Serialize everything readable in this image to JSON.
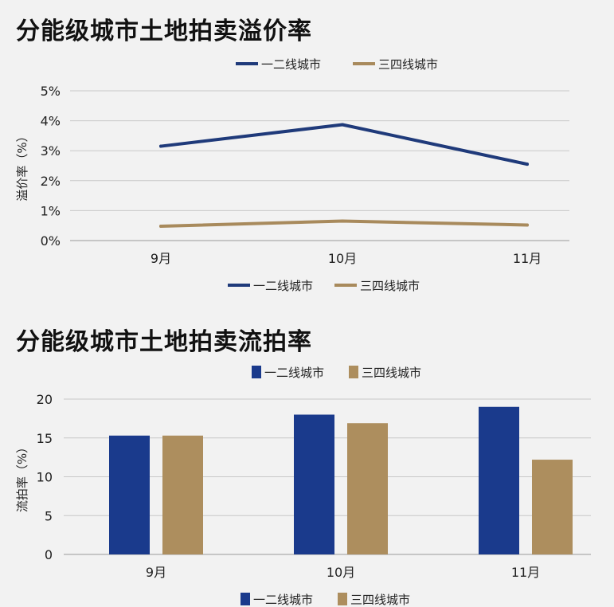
{
  "charts": {
    "premium": {
      "title": "分能级城市土地拍卖溢价率"
    },
    "failed": {
      "title": "分能级城市土地拍卖流拍率"
    }
  },
  "chart_data": [
    {
      "type": "line",
      "title": "分能级城市土地拍卖溢价率",
      "xlabel": "",
      "ylabel": "溢价率（%）",
      "categories": [
        "9月",
        "10月",
        "11月"
      ],
      "y_ticks": [
        "0%",
        "1%",
        "2%",
        "3%",
        "4%",
        "5%"
      ],
      "ylim": [
        0,
        5
      ],
      "grid": true,
      "legend_position": "top and bottom",
      "series": [
        {
          "name": "一二线城市",
          "values": [
            3.15,
            3.87,
            2.55
          ],
          "color": "#1f3a7a"
        },
        {
          "name": "三四线城市",
          "values": [
            0.48,
            0.65,
            0.52
          ],
          "color": "#a88a5c"
        }
      ]
    },
    {
      "type": "bar",
      "title": "分能级城市土地拍卖流拍率",
      "xlabel": "",
      "ylabel": "流拍率（%）",
      "categories": [
        "9月",
        "10月",
        "11月"
      ],
      "y_ticks": [
        "0",
        "5",
        "10",
        "15",
        "20"
      ],
      "ylim": [
        0,
        20
      ],
      "grid": true,
      "legend_position": "top and bottom",
      "series": [
        {
          "name": "一二线城市",
          "values": [
            15.3,
            18.0,
            19.0
          ],
          "color": "#1a3a8c"
        },
        {
          "name": "三四线城市",
          "values": [
            15.3,
            16.9,
            12.2
          ],
          "color": "#ad8e5e"
        }
      ]
    }
  ]
}
